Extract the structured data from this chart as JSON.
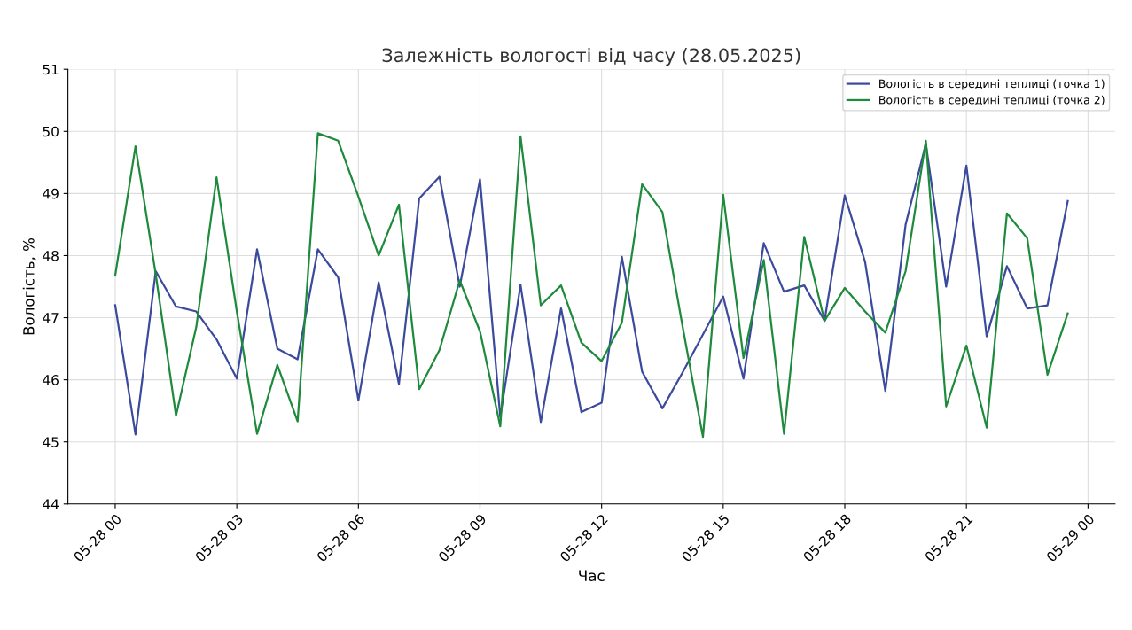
{
  "chart_data": {
    "type": "line",
    "title": "Залежність вологості від часу (28.05.2025)",
    "xlabel": "Час",
    "ylabel": "Вологість, %",
    "x": [
      "2025-05-28T00:00",
      "2025-05-28T00:30",
      "2025-05-28T01:00",
      "2025-05-28T01:30",
      "2025-05-28T02:00",
      "2025-05-28T02:30",
      "2025-05-28T03:00",
      "2025-05-28T03:30",
      "2025-05-28T04:00",
      "2025-05-28T04:30",
      "2025-05-28T05:00",
      "2025-05-28T05:30",
      "2025-05-28T06:00",
      "2025-05-28T06:30",
      "2025-05-28T07:00",
      "2025-05-28T07:30",
      "2025-05-28T08:00",
      "2025-05-28T08:30",
      "2025-05-28T09:00",
      "2025-05-28T09:30",
      "2025-05-28T10:00",
      "2025-05-28T10:30",
      "2025-05-28T11:00",
      "2025-05-28T11:30",
      "2025-05-28T12:00",
      "2025-05-28T12:30",
      "2025-05-28T13:00",
      "2025-05-28T13:30",
      "2025-05-28T14:00",
      "2025-05-28T14:30",
      "2025-05-28T15:00",
      "2025-05-28T15:30",
      "2025-05-28T16:00",
      "2025-05-28T16:30",
      "2025-05-28T17:00",
      "2025-05-28T17:30",
      "2025-05-28T18:00",
      "2025-05-28T18:30",
      "2025-05-28T19:00",
      "2025-05-28T19:30",
      "2025-05-28T20:00",
      "2025-05-28T20:30",
      "2025-05-28T21:00",
      "2025-05-28T21:30",
      "2025-05-28T22:00",
      "2025-05-28T22:30",
      "2025-05-28T23:00",
      "2025-05-28T23:30"
    ],
    "series": [
      {
        "name": "Вологість в середині теплиці (точка 1)",
        "color": "#3b4a9c",
        "values": [
          47.2,
          45.12,
          47.75,
          47.18,
          47.1,
          46.65,
          46.02,
          48.1,
          46.5,
          46.33,
          48.1,
          47.65,
          45.67,
          47.57,
          45.93,
          48.92,
          49.27,
          47.5,
          49.23,
          45.4,
          47.53,
          45.32,
          47.15,
          45.48,
          45.63,
          47.98,
          46.13,
          45.54,
          46.12,
          46.73,
          47.34,
          46.02,
          48.2,
          47.42,
          47.52,
          46.95,
          48.97,
          47.9,
          45.82,
          48.5,
          49.8,
          47.5,
          49.45,
          46.7,
          47.83,
          47.15,
          47.2,
          48.88
        ]
      },
      {
        "name": "Вологість в середині теплиці (точка 2)",
        "color": "#1e8a3c",
        "values": [
          47.68,
          49.76,
          47.7,
          45.42,
          46.85,
          49.26,
          47.1,
          45.13,
          46.24,
          45.33,
          49.97,
          49.85,
          48.95,
          48.0,
          48.82,
          45.85,
          46.48,
          47.6,
          46.78,
          45.25,
          49.92,
          47.2,
          47.52,
          46.6,
          46.3,
          46.92,
          49.15,
          48.7,
          46.85,
          45.08,
          48.98,
          46.35,
          47.93,
          45.13,
          48.3,
          46.95,
          47.48,
          47.1,
          46.76,
          47.75,
          49.85,
          45.57,
          46.55,
          45.23,
          48.68,
          48.28,
          46.08,
          47.07
        ]
      }
    ],
    "xlim": [
      "2025-05-27T22:50",
      "2025-05-29T00:40"
    ],
    "xticks": [
      {
        "value": "2025-05-28T00:00",
        "label": "05-28 00"
      },
      {
        "value": "2025-05-28T03:00",
        "label": "05-28 03"
      },
      {
        "value": "2025-05-28T06:00",
        "label": "05-28 06"
      },
      {
        "value": "2025-05-28T09:00",
        "label": "05-28 09"
      },
      {
        "value": "2025-05-28T12:00",
        "label": "05-28 12"
      },
      {
        "value": "2025-05-28T15:00",
        "label": "05-28 15"
      },
      {
        "value": "2025-05-28T18:00",
        "label": "05-28 18"
      },
      {
        "value": "2025-05-28T21:00",
        "label": "05-28 21"
      },
      {
        "value": "2025-05-29T00:00",
        "label": "05-29 00"
      }
    ],
    "ylim": [
      44,
      51
    ],
    "yticks": [
      44,
      45,
      46,
      47,
      48,
      49,
      50,
      51
    ],
    "grid": true,
    "legend": "top right",
    "marker": "none",
    "line_style": "solid"
  }
}
